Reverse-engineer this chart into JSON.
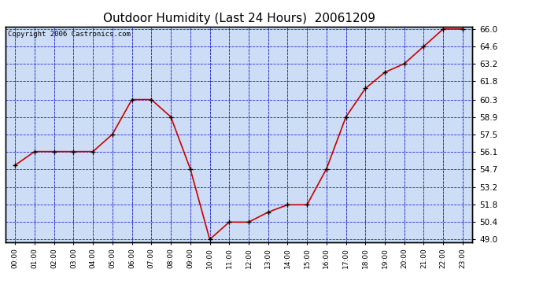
{
  "title": "Outdoor Humidity (Last 24 Hours)  20061209",
  "copyright_text": "Copyright 2006 Castronics.com",
  "x_labels": [
    "00:00",
    "01:00",
    "02:00",
    "03:00",
    "04:00",
    "05:00",
    "06:00",
    "07:00",
    "08:00",
    "09:00",
    "10:00",
    "11:00",
    "12:00",
    "13:00",
    "14:00",
    "15:00",
    "16:00",
    "17:00",
    "18:00",
    "19:00",
    "20:00",
    "21:00",
    "22:00",
    "23:00"
  ],
  "y_values": [
    55.0,
    56.1,
    56.1,
    56.1,
    56.1,
    57.5,
    60.3,
    60.3,
    58.9,
    54.7,
    49.0,
    50.4,
    50.4,
    51.2,
    51.8,
    51.8,
    54.7,
    58.9,
    61.2,
    62.5,
    63.2,
    64.6,
    66.0,
    66.0
  ],
  "y_ticks": [
    49.0,
    50.4,
    51.8,
    53.2,
    54.7,
    56.1,
    57.5,
    58.9,
    60.3,
    61.8,
    63.2,
    64.6,
    66.0
  ],
  "y_min": 49.0,
  "y_max": 66.0,
  "line_color": "#cc0000",
  "marker_color": "#000000",
  "bg_color": "#ffffff",
  "plot_bg_color": "#ccddf5",
  "grid_color": "#0000cc",
  "title_color": "#000000",
  "title_fontsize": 11,
  "axis_label_color": "#000000",
  "copyright_color": "#000000",
  "copyright_fontsize": 6.5
}
